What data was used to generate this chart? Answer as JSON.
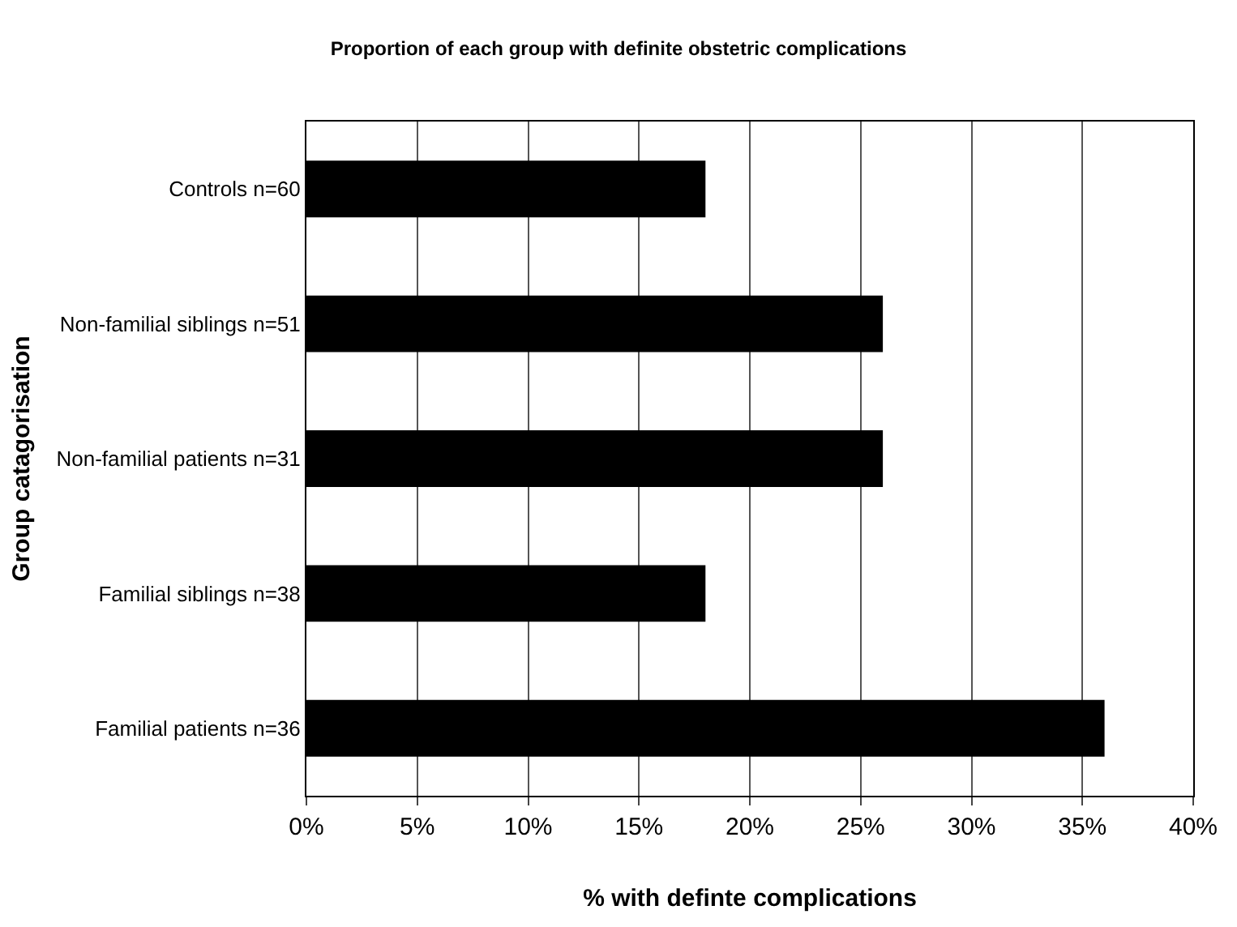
{
  "chart_data": {
    "type": "bar",
    "orientation": "horizontal",
    "title": "Proportion of each group with definite obstetric complications",
    "xlabel": "% with definte complications",
    "ylabel": "Group catagorisation",
    "categories": [
      "Controls n=60",
      "Non-familial siblings n=51",
      "Non-familial patients n=31",
      "Familial siblings n=38",
      "Familial patients n=36"
    ],
    "values": [
      18,
      26,
      26,
      18,
      36
    ],
    "color": "#000000",
    "xlim": [
      0,
      40
    ],
    "xticks": [
      {
        "value": 0,
        "label": "0%"
      },
      {
        "value": 5,
        "label": "5%"
      },
      {
        "value": 10,
        "label": "10%"
      },
      {
        "value": 15,
        "label": "15%"
      },
      {
        "value": 20,
        "label": "20%"
      },
      {
        "value": 25,
        "label": "25%"
      },
      {
        "value": 30,
        "label": "30%"
      },
      {
        "value": 35,
        "label": "35%"
      },
      {
        "value": 40,
        "label": "40%"
      }
    ],
    "grid": "x",
    "legend": false
  }
}
